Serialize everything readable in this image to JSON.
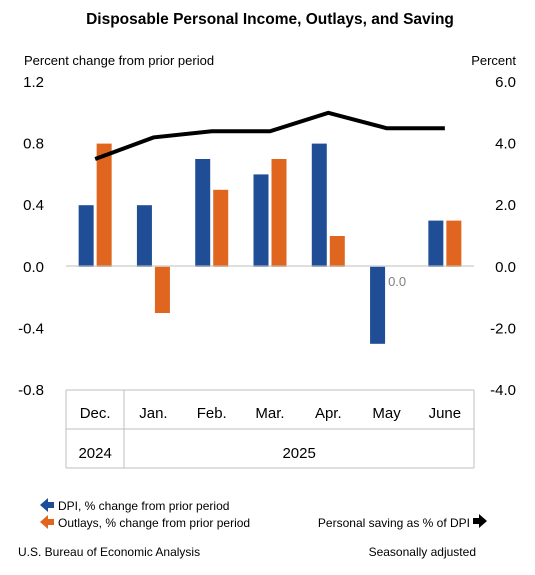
{
  "chart_data": {
    "type": "bar",
    "title": "Disposable Personal Income, Outlays, and Saving",
    "left_axis": {
      "label": "Percent change from prior period",
      "range": [
        -0.8,
        1.2
      ],
      "ticks": [
        "1.2",
        "0.8",
        "0.4",
        "0.0",
        "-0.4",
        "-0.8"
      ],
      "tick_values": [
        1.2,
        0.8,
        0.4,
        0.0,
        -0.4,
        -0.8
      ]
    },
    "right_axis": {
      "label": "Percent",
      "range": [
        -4.0,
        6.0
      ],
      "ticks": [
        "6.0",
        "4.0",
        "2.0",
        "0.0",
        "-2.0",
        "-4.0"
      ]
    },
    "categories": [
      "Dec.",
      "Jan.",
      "Feb.",
      "Mar.",
      "Apr.",
      "May",
      "June"
    ],
    "years": [
      {
        "label": "2024",
        "span": [
          0,
          0
        ]
      },
      {
        "label": "2025",
        "span": [
          1,
          6
        ]
      }
    ],
    "series": [
      {
        "name": "DPI, % change from prior period",
        "type": "bar",
        "axis": "left",
        "color": "#1f4e96",
        "values": [
          0.4,
          0.4,
          0.7,
          0.6,
          0.8,
          -0.5,
          0.3
        ]
      },
      {
        "name": "Outlays, % change from prior period",
        "type": "bar",
        "axis": "left",
        "color": "#e0661f",
        "values": [
          0.8,
          -0.3,
          0.5,
          0.7,
          0.2,
          0.0,
          0.3
        ]
      },
      {
        "name": "Personal saving as % of DPI",
        "type": "line",
        "axis": "right",
        "color": "#000000",
        "values": [
          3.5,
          4.2,
          4.4,
          4.4,
          5.0,
          4.5,
          4.5
        ]
      }
    ],
    "annotations": [
      {
        "text": "0.0",
        "category": "May"
      }
    ],
    "footer_left": "U.S. Bureau of Economic Analysis",
    "footer_right": "Seasonally adjusted",
    "grid": false
  }
}
